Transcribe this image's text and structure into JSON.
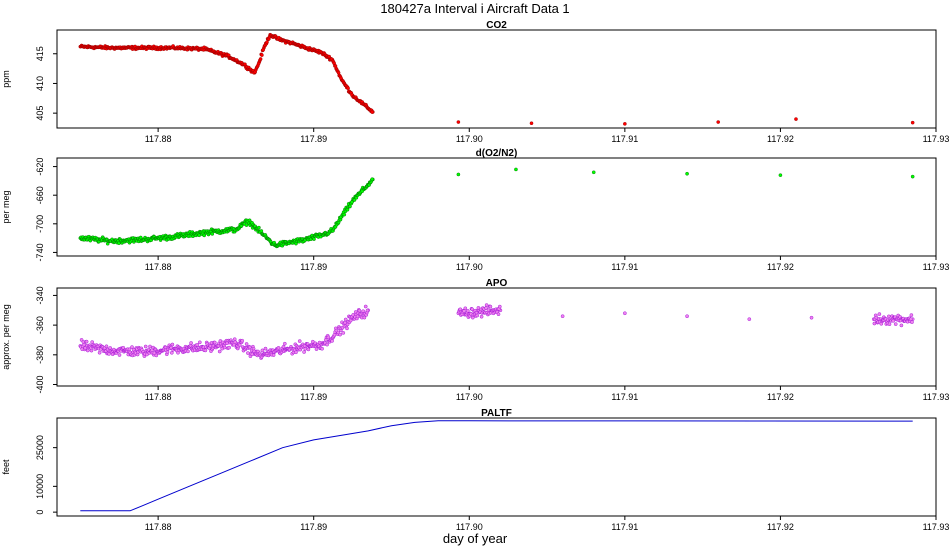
{
  "figure": {
    "title": "180427a   Interval i Aircraft Data 1",
    "xlabel": "day of year"
  },
  "chart_data": [
    {
      "type": "scatter",
      "title": "CO2",
      "ylabel": "ppm",
      "xlim": [
        117.8735,
        117.93
      ],
      "ylim": [
        402.5,
        419
      ],
      "xticks": [
        117.88,
        117.89,
        117.9,
        117.91,
        117.92,
        117.93
      ],
      "yticks": [
        405,
        410,
        415
      ],
      "series": [
        {
          "color": "#ff0000",
          "outline": "#8b0000",
          "points": [
            [
              117.875,
              416.2
            ],
            [
              117.877,
              416.0
            ],
            [
              117.879,
              416.0
            ],
            [
              117.881,
              416.0
            ],
            [
              117.883,
              415.8
            ],
            [
              117.8845,
              414.6
            ],
            [
              117.8855,
              413.2
            ],
            [
              117.8862,
              411.8
            ],
            [
              117.8865,
              413.6
            ],
            [
              117.8868,
              416.0
            ],
            [
              117.8872,
              418.2
            ],
            [
              117.8878,
              417.4
            ],
            [
              117.8886,
              416.8
            ],
            [
              117.8895,
              416.0
            ],
            [
              117.8905,
              415.2
            ],
            [
              117.8912,
              414.0
            ],
            [
              117.8918,
              410.6
            ],
            [
              117.8925,
              408.0
            ],
            [
              117.8932,
              406.5
            ],
            [
              117.8938,
              405.2
            ],
            [
              117.8993,
              403.5
            ],
            [
              117.904,
              403.3
            ],
            [
              117.91,
              403.2
            ],
            [
              117.916,
              403.5
            ],
            [
              117.921,
              404.0
            ],
            [
              117.9285,
              403.4
            ]
          ]
        }
      ]
    },
    {
      "type": "scatter",
      "title": "d(O2/N2)",
      "ylabel": "per meg",
      "xlim": [
        117.8735,
        117.93
      ],
      "ylim": [
        -745,
        -608
      ],
      "xticks": [
        117.88,
        117.89,
        117.9,
        117.91,
        117.92,
        117.93
      ],
      "yticks": [
        -740,
        -700,
        -660,
        -620
      ],
      "series": [
        {
          "color": "#00ff00",
          "outline": "#006400",
          "points": [
            [
              117.875,
              -720
            ],
            [
              117.877,
              -724
            ],
            [
              117.879,
              -722
            ],
            [
              117.881,
              -718
            ],
            [
              117.883,
              -712
            ],
            [
              117.885,
              -708
            ],
            [
              117.8858,
              -696
            ],
            [
              117.8866,
              -712
            ],
            [
              117.8875,
              -730
            ],
            [
              117.8885,
              -726
            ],
            [
              117.8895,
              -722
            ],
            [
              117.8905,
              -716
            ],
            [
              117.8912,
              -710
            ],
            [
              117.8918,
              -690
            ],
            [
              117.8925,
              -668
            ],
            [
              117.8932,
              -652
            ],
            [
              117.8938,
              -638
            ],
            [
              117.8993,
              -631
            ],
            [
              117.903,
              -624
            ],
            [
              117.908,
              -628
            ],
            [
              117.914,
              -630
            ],
            [
              117.92,
              -632
            ],
            [
              117.9285,
              -634
            ]
          ]
        }
      ]
    },
    {
      "type": "scatter",
      "title": "APO",
      "ylabel": "approx. per meg",
      "xlim": [
        117.8735,
        117.93
      ],
      "ylim": [
        -401,
        -335
      ],
      "xticks": [
        117.88,
        117.89,
        117.9,
        117.91,
        117.92,
        117.93
      ],
      "yticks": [
        -400,
        -380,
        -360,
        -340
      ],
      "series": [
        {
          "color": "#ee82ee",
          "outline": "#9400d3",
          "points": [
            [
              117.875,
              -374
            ],
            [
              117.877,
              -377
            ],
            [
              117.879,
              -378
            ],
            [
              117.881,
              -376
            ],
            [
              117.883,
              -375
            ],
            [
              117.885,
              -372
            ],
            [
              117.8865,
              -380
            ],
            [
              117.8875,
              -378
            ],
            [
              117.8885,
              -376
            ],
            [
              117.8895,
              -374
            ],
            [
              117.8905,
              -373
            ],
            [
              117.8915,
              -365
            ],
            [
              117.8925,
              -355
            ],
            [
              117.8935,
              -350
            ],
            [
              117.8993,
              -352
            ],
            [
              117.902,
              -350
            ],
            [
              117.906,
              -354
            ],
            [
              117.91,
              -352
            ],
            [
              117.914,
              -354
            ],
            [
              117.918,
              -356
            ],
            [
              117.922,
              -355
            ],
            [
              117.926,
              -356
            ],
            [
              117.9285,
              -356
            ]
          ]
        }
      ]
    },
    {
      "type": "line",
      "title": "PALTF",
      "ylabel": "feet",
      "xlim": [
        117.8735,
        117.93
      ],
      "ylim": [
        -1500,
        36500
      ],
      "xticks": [
        117.88,
        117.89,
        117.9,
        117.91,
        117.92,
        117.93
      ],
      "yticks": [
        0,
        10000,
        25000
      ],
      "series": [
        {
          "color": "#0000cd",
          "points": [
            [
              117.875,
              500
            ],
            [
              117.8782,
              500
            ],
            [
              117.879,
              2500
            ],
            [
              117.88,
              5000
            ],
            [
              117.882,
              10000
            ],
            [
              117.884,
              15000
            ],
            [
              117.886,
              20000
            ],
            [
              117.888,
              25000
            ],
            [
              117.89,
              28000
            ],
            [
              117.892,
              30000
            ],
            [
              117.8935,
              31500
            ],
            [
              117.895,
              33500
            ],
            [
              117.8965,
              34800
            ],
            [
              117.898,
              35400
            ],
            [
              117.9,
              35400
            ],
            [
              117.9285,
              35300
            ]
          ]
        }
      ]
    }
  ]
}
